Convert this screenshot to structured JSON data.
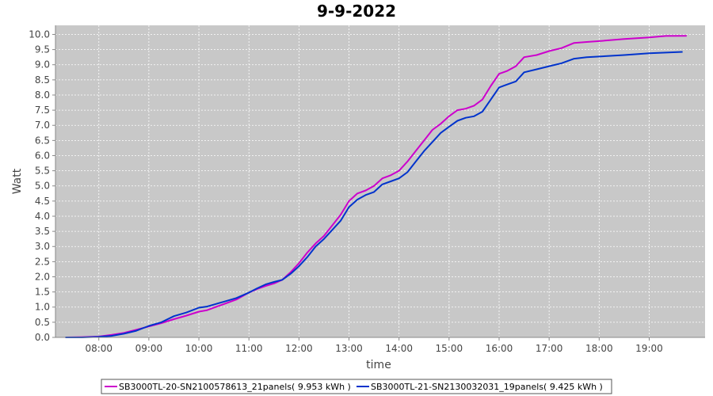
{
  "chart_data": {
    "type": "line",
    "title": "9-9-2022",
    "xlabel": "time",
    "ylabel": "Watt",
    "xlim": [
      "07:08",
      "20:07"
    ],
    "ylim": [
      0,
      10.3
    ],
    "x_ticks": [
      "08:00",
      "09:00",
      "10:00",
      "11:00",
      "12:00",
      "13:00",
      "14:00",
      "15:00",
      "16:00",
      "17:00",
      "18:00",
      "19:00"
    ],
    "y_ticks": [
      "0.0",
      "0.5",
      "1.0",
      "1.5",
      "2.0",
      "2.5",
      "3.0",
      "3.5",
      "4.0",
      "4.5",
      "5.0",
      "5.5",
      "6.0",
      "6.5",
      "7.0",
      "7.5",
      "8.0",
      "8.5",
      "9.0",
      "9.5",
      "10.0"
    ],
    "grid": true,
    "legend_position": "bottom",
    "background_color": "#c8c8c8",
    "series": [
      {
        "name": "SB3000TL-20-SN2100578613_21panels( 9.953 kWh )",
        "color": "#cc00cc",
        "points": [
          [
            "07:20",
            0.0
          ],
          [
            "07:40",
            0.01
          ],
          [
            "08:00",
            0.03
          ],
          [
            "08:15",
            0.08
          ],
          [
            "08:30",
            0.15
          ],
          [
            "08:45",
            0.25
          ],
          [
            "09:00",
            0.36
          ],
          [
            "09:15",
            0.47
          ],
          [
            "09:30",
            0.6
          ],
          [
            "09:45",
            0.72
          ],
          [
            "10:00",
            0.85
          ],
          [
            "10:10",
            0.9
          ],
          [
            "10:20",
            1.0
          ],
          [
            "10:30",
            1.1
          ],
          [
            "10:45",
            1.25
          ],
          [
            "11:00",
            1.48
          ],
          [
            "11:10",
            1.6
          ],
          [
            "11:20",
            1.7
          ],
          [
            "11:30",
            1.78
          ],
          [
            "11:40",
            1.9
          ],
          [
            "11:50",
            2.15
          ],
          [
            "12:00",
            2.45
          ],
          [
            "12:10",
            2.8
          ],
          [
            "12:20",
            3.1
          ],
          [
            "12:30",
            3.35
          ],
          [
            "12:40",
            3.7
          ],
          [
            "12:50",
            4.05
          ],
          [
            "13:00",
            4.5
          ],
          [
            "13:10",
            4.75
          ],
          [
            "13:20",
            4.85
          ],
          [
            "13:30",
            5.0
          ],
          [
            "13:40",
            5.25
          ],
          [
            "13:50",
            5.35
          ],
          [
            "14:00",
            5.5
          ],
          [
            "14:10",
            5.8
          ],
          [
            "14:20",
            6.15
          ],
          [
            "14:30",
            6.5
          ],
          [
            "14:40",
            6.85
          ],
          [
            "14:50",
            7.05
          ],
          [
            "15:00",
            7.3
          ],
          [
            "15:10",
            7.5
          ],
          [
            "15:20",
            7.55
          ],
          [
            "15:30",
            7.65
          ],
          [
            "15:40",
            7.85
          ],
          [
            "15:50",
            8.3
          ],
          [
            "16:00",
            8.7
          ],
          [
            "16:10",
            8.8
          ],
          [
            "16:20",
            8.95
          ],
          [
            "16:30",
            9.25
          ],
          [
            "16:45",
            9.32
          ],
          [
            "17:00",
            9.45
          ],
          [
            "17:15",
            9.55
          ],
          [
            "17:30",
            9.72
          ],
          [
            "17:45",
            9.75
          ],
          [
            "18:00",
            9.78
          ],
          [
            "18:30",
            9.85
          ],
          [
            "19:00",
            9.9
          ],
          [
            "19:20",
            9.95
          ],
          [
            "19:45",
            9.953
          ]
        ]
      },
      {
        "name": "SB3000TL-21-SN2130032031_19panels( 9.425 kWh )",
        "color": "#0033cc",
        "points": [
          [
            "07:20",
            0.0
          ],
          [
            "07:40",
            0.0
          ],
          [
            "08:00",
            0.02
          ],
          [
            "08:15",
            0.05
          ],
          [
            "08:30",
            0.12
          ],
          [
            "08:45",
            0.22
          ],
          [
            "09:00",
            0.38
          ],
          [
            "09:15",
            0.5
          ],
          [
            "09:30",
            0.7
          ],
          [
            "09:45",
            0.82
          ],
          [
            "10:00",
            0.98
          ],
          [
            "10:10",
            1.02
          ],
          [
            "10:20",
            1.1
          ],
          [
            "10:30",
            1.18
          ],
          [
            "10:45",
            1.3
          ],
          [
            "11:00",
            1.48
          ],
          [
            "11:10",
            1.62
          ],
          [
            "11:20",
            1.75
          ],
          [
            "11:30",
            1.83
          ],
          [
            "11:40",
            1.9
          ],
          [
            "11:50",
            2.1
          ],
          [
            "12:00",
            2.35
          ],
          [
            "12:10",
            2.65
          ],
          [
            "12:20",
            3.0
          ],
          [
            "12:30",
            3.25
          ],
          [
            "12:40",
            3.55
          ],
          [
            "12:50",
            3.85
          ],
          [
            "13:00",
            4.3
          ],
          [
            "13:10",
            4.55
          ],
          [
            "13:20",
            4.7
          ],
          [
            "13:30",
            4.8
          ],
          [
            "13:40",
            5.05
          ],
          [
            "13:50",
            5.15
          ],
          [
            "14:00",
            5.25
          ],
          [
            "14:10",
            5.45
          ],
          [
            "14:20",
            5.8
          ],
          [
            "14:30",
            6.15
          ],
          [
            "14:40",
            6.45
          ],
          [
            "14:50",
            6.75
          ],
          [
            "15:00",
            6.95
          ],
          [
            "15:10",
            7.15
          ],
          [
            "15:20",
            7.25
          ],
          [
            "15:30",
            7.3
          ],
          [
            "15:40",
            7.45
          ],
          [
            "15:50",
            7.85
          ],
          [
            "16:00",
            8.25
          ],
          [
            "16:10",
            8.35
          ],
          [
            "16:20",
            8.45
          ],
          [
            "16:30",
            8.75
          ],
          [
            "16:45",
            8.85
          ],
          [
            "17:00",
            8.95
          ],
          [
            "17:15",
            9.05
          ],
          [
            "17:30",
            9.2
          ],
          [
            "17:45",
            9.25
          ],
          [
            "18:00",
            9.27
          ],
          [
            "18:30",
            9.32
          ],
          [
            "19:00",
            9.38
          ],
          [
            "19:20",
            9.4
          ],
          [
            "19:40",
            9.425
          ]
        ]
      }
    ]
  }
}
